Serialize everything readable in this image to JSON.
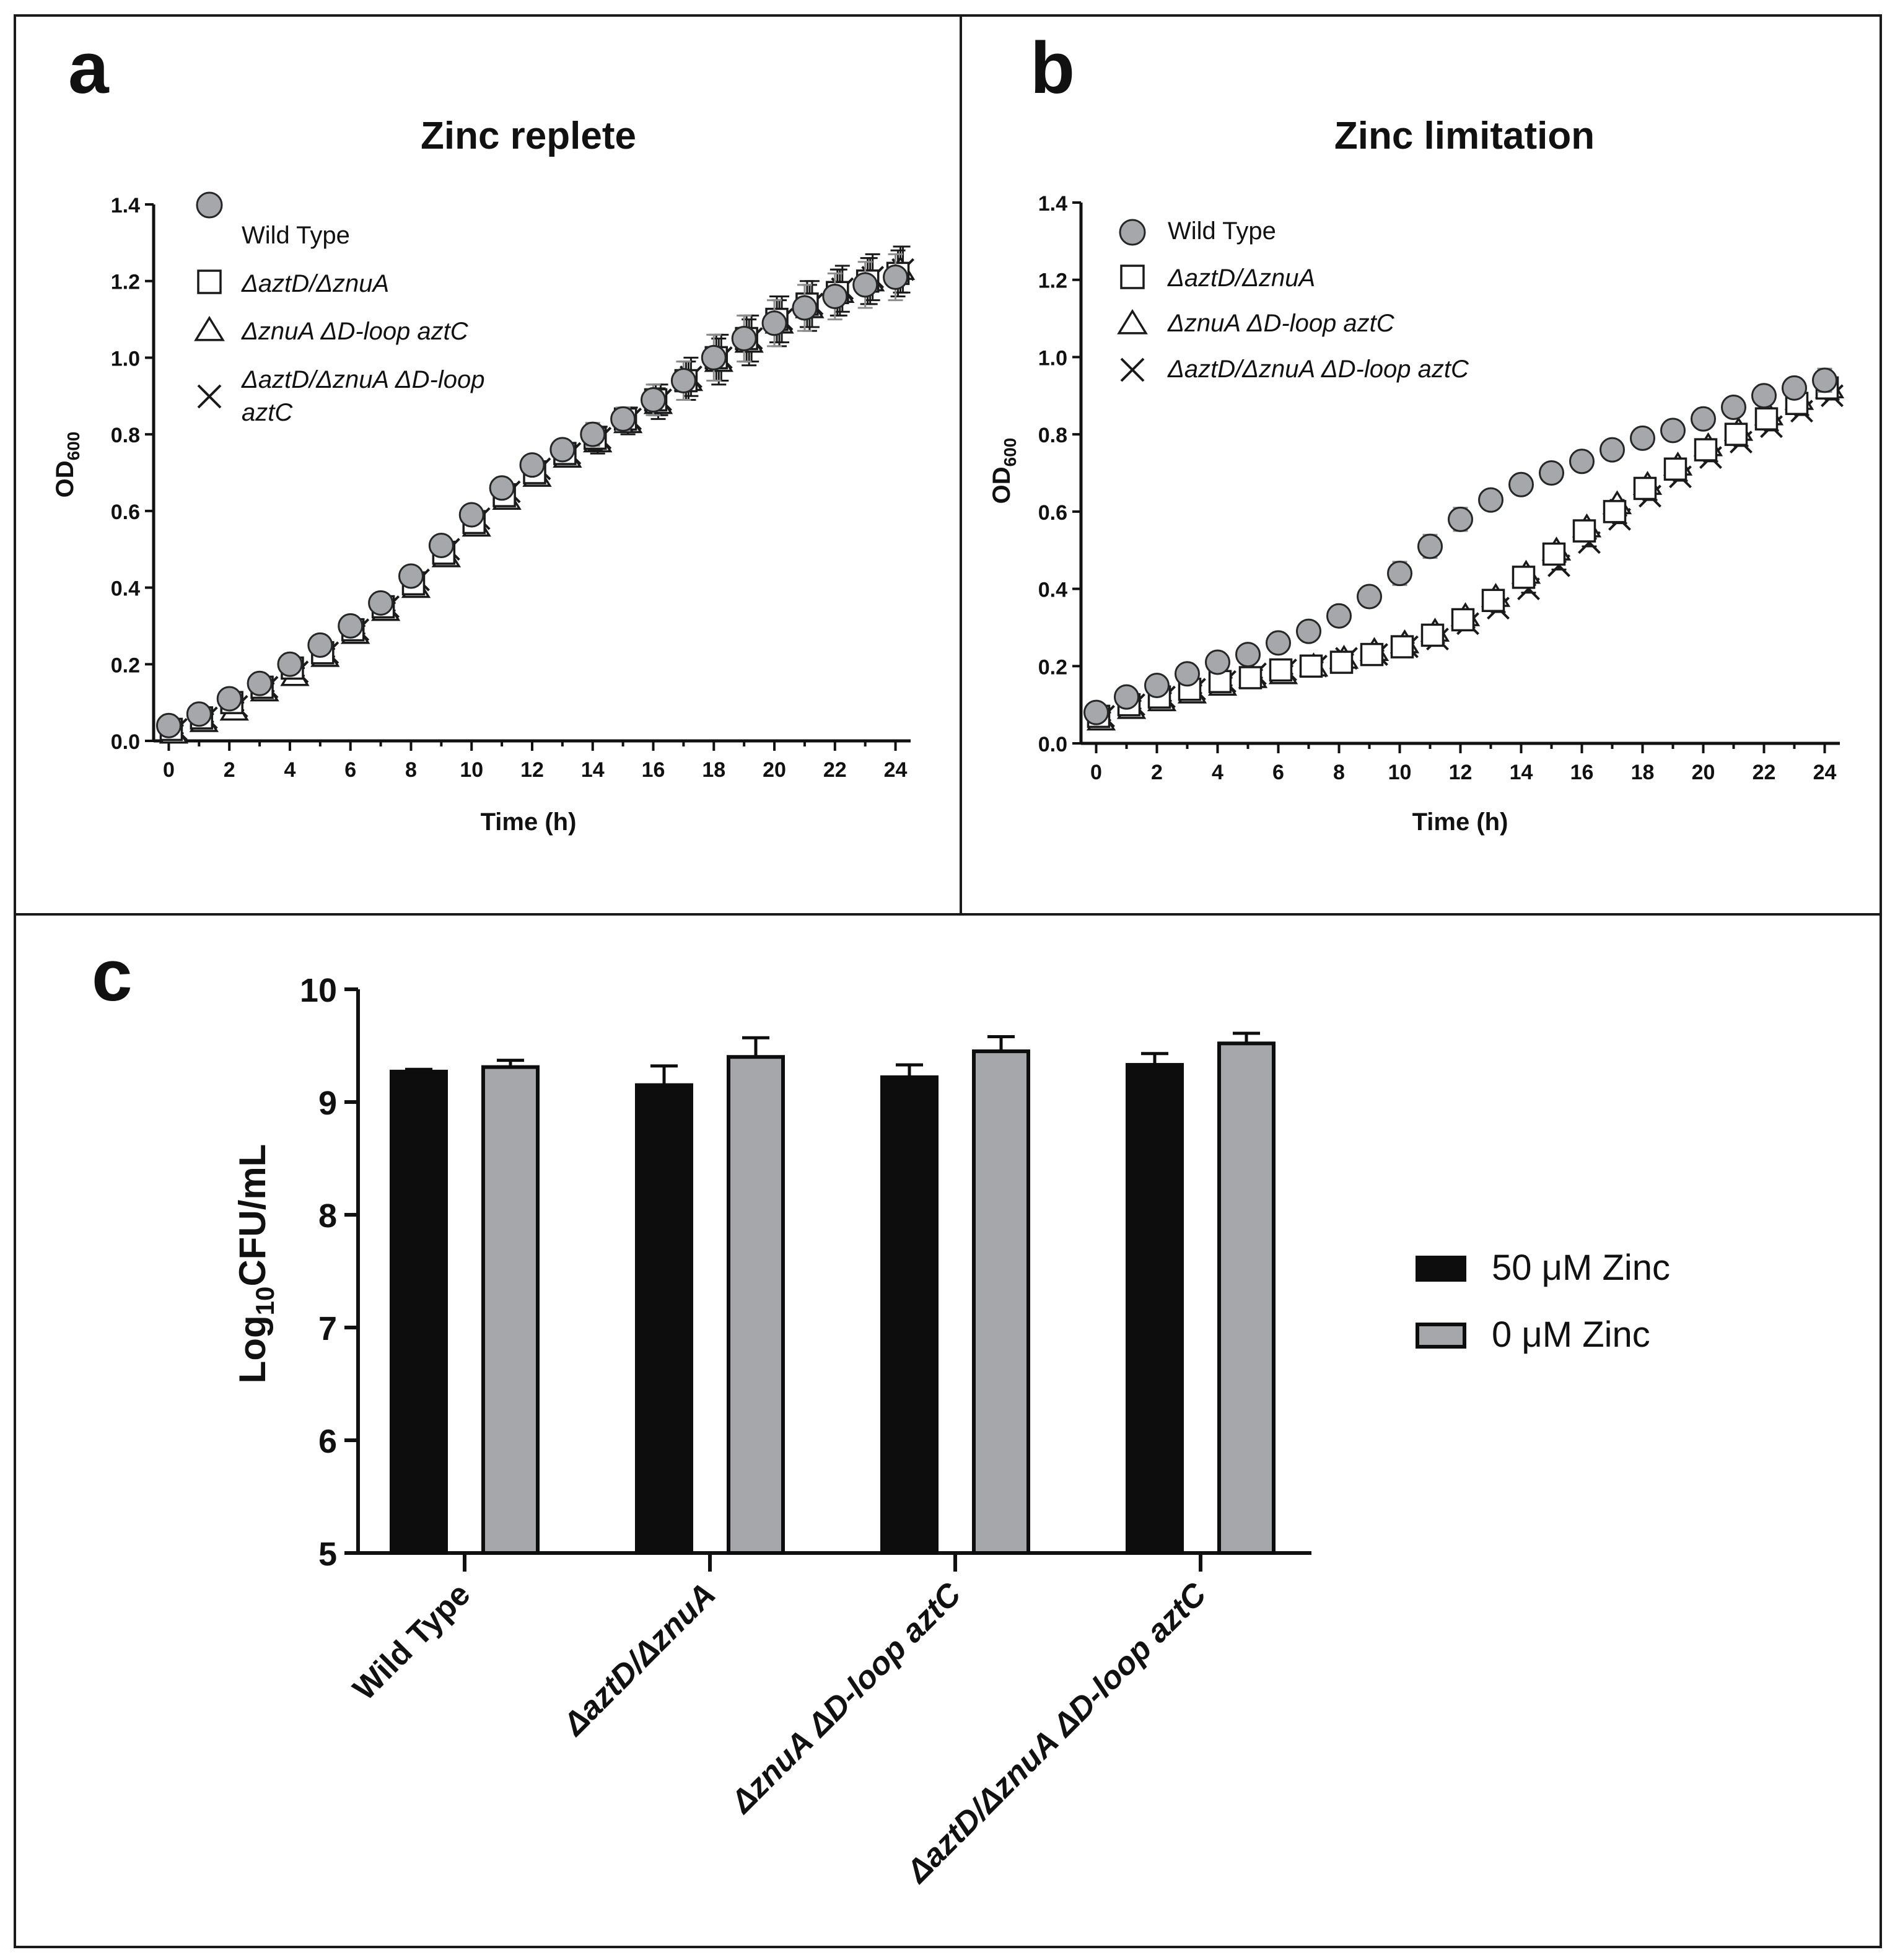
{
  "figure": {
    "panel_a_letter": "a",
    "panel_b_letter": "b",
    "panel_c_letter": "c"
  },
  "chart_data": [
    {
      "type": "scatter",
      "panel": "a",
      "title": "Zinc replete",
      "xlabel": "Time (h)",
      "ylabel_main": "OD",
      "ylabel_sub": "600",
      "xlim": [
        -0.5,
        24.5
      ],
      "ylim": [
        0,
        1.4
      ],
      "xticks": [
        0,
        2,
        4,
        6,
        8,
        10,
        12,
        14,
        16,
        18,
        20,
        22,
        24
      ],
      "yticks": [
        0.0,
        0.2,
        0.4,
        0.6,
        0.8,
        1.0,
        1.2,
        1.4
      ],
      "legend": [
        {
          "label": "Wild Type",
          "marker": "circle"
        },
        {
          "label": "ΔaztD/ΔznuA",
          "marker": "square"
        },
        {
          "label": "ΔznuA ΔD-loop aztC",
          "marker": "triangle"
        },
        {
          "label": "ΔaztD/ΔznuA ΔD-loop",
          "label_line2": "aztC",
          "marker": "x"
        }
      ],
      "x": [
        0,
        1,
        2,
        3,
        4,
        5,
        6,
        7,
        8,
        9,
        10,
        11,
        12,
        13,
        14,
        15,
        16,
        17,
        18,
        19,
        20,
        21,
        22,
        23,
        24
      ],
      "series": [
        {
          "name": "Wild Type",
          "marker": "circle",
          "values": [
            0.04,
            0.07,
            0.11,
            0.15,
            0.2,
            0.25,
            0.3,
            0.36,
            0.43,
            0.51,
            0.59,
            0.66,
            0.72,
            0.76,
            0.8,
            0.84,
            0.89,
            0.94,
            1.0,
            1.05,
            1.09,
            1.13,
            1.16,
            1.19,
            1.21
          ],
          "error": [
            0.01,
            0.01,
            0.01,
            0.01,
            0.01,
            0.01,
            0.01,
            0.01,
            0.02,
            0.02,
            0.02,
            0.02,
            0.02,
            0.02,
            0.03,
            0.03,
            0.04,
            0.05,
            0.06,
            0.06,
            0.06,
            0.06,
            0.06,
            0.06,
            0.06
          ]
        },
        {
          "name": "ΔaztD/ΔznuA",
          "marker": "square",
          "values": [
            0.03,
            0.06,
            0.1,
            0.14,
            0.19,
            0.23,
            0.29,
            0.35,
            0.41,
            0.49,
            0.57,
            0.64,
            0.7,
            0.75,
            0.79,
            0.84,
            0.89,
            0.94,
            1.0,
            1.05,
            1.1,
            1.14,
            1.17,
            1.2,
            1.22
          ],
          "error": [
            0.01,
            0.01,
            0.01,
            0.01,
            0.01,
            0.01,
            0.01,
            0.01,
            0.02,
            0.02,
            0.02,
            0.02,
            0.02,
            0.02,
            0.03,
            0.03,
            0.04,
            0.05,
            0.06,
            0.06,
            0.06,
            0.06,
            0.06,
            0.06,
            0.06
          ]
        },
        {
          "name": "ΔznuA ΔD-loop aztC",
          "marker": "triangle",
          "values": [
            0.02,
            0.05,
            0.08,
            0.13,
            0.17,
            0.22,
            0.28,
            0.34,
            0.4,
            0.48,
            0.56,
            0.63,
            0.69,
            0.74,
            0.78,
            0.83,
            0.88,
            0.94,
            0.99,
            1.04,
            1.09,
            1.13,
            1.17,
            1.2,
            1.23
          ],
          "error": [
            0.01,
            0.01,
            0.01,
            0.01,
            0.01,
            0.01,
            0.01,
            0.01,
            0.02,
            0.02,
            0.02,
            0.02,
            0.02,
            0.02,
            0.03,
            0.03,
            0.04,
            0.05,
            0.06,
            0.06,
            0.06,
            0.06,
            0.06,
            0.06,
            0.06
          ]
        },
        {
          "name": "ΔaztD/ΔznuA ΔD-loop aztC",
          "marker": "x",
          "values": [
            0.03,
            0.06,
            0.09,
            0.14,
            0.18,
            0.23,
            0.29,
            0.35,
            0.42,
            0.5,
            0.58,
            0.65,
            0.71,
            0.75,
            0.79,
            0.84,
            0.89,
            0.95,
            1.0,
            1.05,
            1.1,
            1.14,
            1.18,
            1.21,
            1.23
          ],
          "error": [
            0.01,
            0.01,
            0.01,
            0.01,
            0.01,
            0.01,
            0.01,
            0.01,
            0.02,
            0.02,
            0.02,
            0.02,
            0.02,
            0.02,
            0.03,
            0.03,
            0.04,
            0.05,
            0.06,
            0.06,
            0.06,
            0.06,
            0.06,
            0.06,
            0.06
          ]
        }
      ]
    },
    {
      "type": "scatter",
      "panel": "b",
      "title": "Zinc limitation",
      "xlabel": "Time (h)",
      "ylabel_main": "OD",
      "ylabel_sub": "600",
      "xlim": [
        -0.5,
        24.5
      ],
      "ylim": [
        0,
        1.4
      ],
      "xticks": [
        0,
        2,
        4,
        6,
        8,
        10,
        12,
        14,
        16,
        18,
        20,
        22,
        24
      ],
      "yticks": [
        0.0,
        0.2,
        0.4,
        0.6,
        0.8,
        1.0,
        1.2,
        1.4
      ],
      "legend": [
        {
          "label": "Wild Type",
          "marker": "circle"
        },
        {
          "label": "ΔaztD/ΔznuA",
          "marker": "square"
        },
        {
          "label": "ΔznuA ΔD-loop aztC",
          "marker": "triangle"
        },
        {
          "label": "ΔaztD/ΔznuA ΔD-loop aztC",
          "marker": "x"
        }
      ],
      "x": [
        0,
        1,
        2,
        3,
        4,
        5,
        6,
        7,
        8,
        9,
        10,
        11,
        12,
        13,
        14,
        15,
        16,
        17,
        18,
        19,
        20,
        21,
        22,
        23,
        24
      ],
      "series": [
        {
          "name": "Wild Type",
          "marker": "circle",
          "values": [
            0.08,
            0.12,
            0.15,
            0.18,
            0.21,
            0.23,
            0.26,
            0.29,
            0.33,
            0.38,
            0.44,
            0.51,
            0.58,
            0.63,
            0.67,
            0.7,
            0.73,
            0.76,
            0.79,
            0.81,
            0.84,
            0.87,
            0.9,
            0.92,
            0.94
          ],
          "error": [
            0.01,
            0.01,
            0.01,
            0.01,
            0.01,
            0.01,
            0.01,
            0.01,
            0.02,
            0.02,
            0.03,
            0.03,
            0.03,
            0.02,
            0.02,
            0.02,
            0.02,
            0.02,
            0.02,
            0.02,
            0.02,
            0.02,
            0.02,
            0.02,
            0.03
          ]
        },
        {
          "name": "ΔaztD/ΔznuA",
          "marker": "square",
          "values": [
            0.07,
            0.1,
            0.12,
            0.14,
            0.16,
            0.17,
            0.19,
            0.2,
            0.21,
            0.23,
            0.25,
            0.28,
            0.32,
            0.37,
            0.43,
            0.49,
            0.55,
            0.6,
            0.66,
            0.71,
            0.76,
            0.8,
            0.84,
            0.88,
            0.92
          ],
          "error": [
            0.01,
            0.01,
            0.01,
            0.01,
            0.01,
            0.01,
            0.01,
            0.01,
            0.01,
            0.01,
            0.01,
            0.01,
            0.01,
            0.01,
            0.01,
            0.01,
            0.01,
            0.01,
            0.01,
            0.01,
            0.01,
            0.01,
            0.01,
            0.01,
            0.01
          ]
        },
        {
          "name": "ΔznuA ΔD-loop aztC",
          "marker": "triangle",
          "values": [
            0.06,
            0.09,
            0.11,
            0.13,
            0.15,
            0.17,
            0.18,
            0.2,
            0.22,
            0.24,
            0.26,
            0.29,
            0.33,
            0.38,
            0.44,
            0.5,
            0.56,
            0.62,
            0.67,
            0.72,
            0.77,
            0.81,
            0.85,
            0.89,
            0.92
          ],
          "error": [
            0.01,
            0.01,
            0.01,
            0.01,
            0.01,
            0.01,
            0.01,
            0.01,
            0.01,
            0.01,
            0.01,
            0.01,
            0.01,
            0.01,
            0.01,
            0.01,
            0.01,
            0.01,
            0.01,
            0.01,
            0.01,
            0.01,
            0.01,
            0.01,
            0.01
          ]
        },
        {
          "name": "ΔaztD/ΔznuA ΔD-loop aztC",
          "marker": "x",
          "values": [
            0.07,
            0.1,
            0.12,
            0.14,
            0.16,
            0.18,
            0.19,
            0.2,
            0.22,
            0.23,
            0.25,
            0.27,
            0.31,
            0.35,
            0.4,
            0.46,
            0.52,
            0.58,
            0.64,
            0.69,
            0.74,
            0.78,
            0.82,
            0.86,
            0.9
          ],
          "error": [
            0.01,
            0.01,
            0.01,
            0.01,
            0.01,
            0.01,
            0.01,
            0.01,
            0.01,
            0.01,
            0.01,
            0.01,
            0.01,
            0.01,
            0.01,
            0.01,
            0.01,
            0.01,
            0.01,
            0.01,
            0.01,
            0.01,
            0.01,
            0.01,
            0.01
          ]
        }
      ]
    },
    {
      "type": "bar",
      "panel": "c",
      "title": "",
      "xlabel": "",
      "ylabel_pre": "Log",
      "ylabel_sub": "10",
      "ylabel_post": "CFU/mL",
      "ylim": [
        5,
        10
      ],
      "yticks": [
        5,
        6,
        7,
        8,
        9,
        10
      ],
      "categories": [
        "Wild Type",
        "ΔaztD/ΔznuA",
        "ΔznuA ΔD-loop aztC",
        "ΔaztD/ΔznuA ΔD-loop aztC"
      ],
      "series": [
        {
          "name": "50 μM Zinc",
          "color": "#0d0d0d",
          "values": [
            9.27,
            9.15,
            9.22,
            9.33
          ],
          "error": [
            0.02,
            0.17,
            0.11,
            0.1
          ]
        },
        {
          "name": "0 μM Zinc",
          "color": "#a6a7aa",
          "values": [
            9.31,
            9.4,
            9.45,
            9.52
          ],
          "error": [
            0.06,
            0.17,
            0.13,
            0.09
          ]
        }
      ],
      "legend_position": "right"
    }
  ]
}
